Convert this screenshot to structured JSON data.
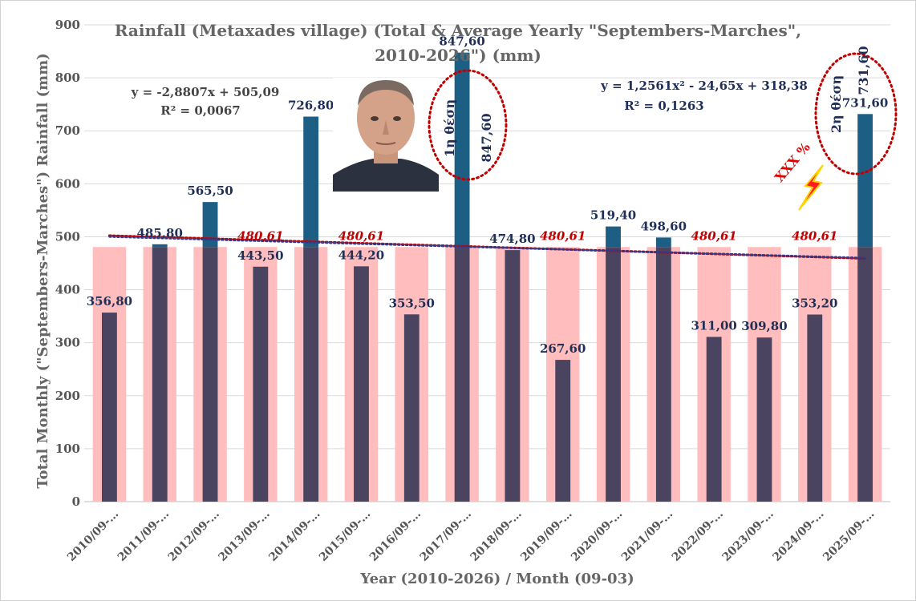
{
  "chart_data": {
    "type": "bar",
    "title_line1": "Rainfall (Metaxades village) (Total & Average Yearly \"Septembers-Marches\",",
    "title_line2": "2010-2026\") (mm)",
    "xlabel": "Year (2010-2026) / Month (09-03)",
    "ylabel": "Total Monthly (\"Septembers-Marches\") Rainfall (mm)",
    "ylim": [
      0,
      900
    ],
    "yticks": [
      0,
      100,
      200,
      300,
      400,
      500,
      600,
      700,
      800,
      900
    ],
    "categories": [
      "2010/09-…",
      "2011/09-…",
      "2012/09-…",
      "2013/09-…",
      "2014/09-…",
      "2015/09-…",
      "2016/09-…",
      "2017/09-…",
      "2018/09-…",
      "2019/09-…",
      "2020/09-…",
      "2021/09-…",
      "2022/09-…",
      "2023/09-…",
      "2024/09-…",
      "2025/09-…"
    ],
    "series": [
      {
        "name": "Average",
        "color": "#ffbdbd",
        "values": [
          480.61,
          480.61,
          480.61,
          480.61,
          480.61,
          480.61,
          480.61,
          480.61,
          480.61,
          480.61,
          480.61,
          480.61,
          480.61,
          480.61,
          480.61,
          480.61
        ],
        "shown_labels": {
          "3": "480,61",
          "5": "480,61",
          "9": "480,61",
          "12": "480,61",
          "14": "480,61"
        }
      },
      {
        "name": "Total",
        "colors": {
          "dark": "#4a4460",
          "blue": "#1d5e85"
        },
        "values": [
          356.8,
          485.8,
          565.5,
          443.5,
          726.8,
          444.2,
          353.5,
          847.6,
          474.8,
          267.6,
          519.4,
          498.6,
          311.0,
          309.8,
          353.2,
          731.6
        ],
        "labels": [
          "356,80",
          "485,80",
          "565,50",
          "443,50",
          "726,80",
          "444,20",
          "353,50",
          "847,60",
          "474,80",
          "267,60",
          "519,40",
          "498,60",
          "311,00",
          "309,80",
          "353,20",
          "731,60"
        ]
      }
    ],
    "trendlines": [
      {
        "type": "linear",
        "equation": "y = -2,8807x + 505,09",
        "r2": "R² = 0,0067",
        "color": "#c00000",
        "style": "dotted"
      },
      {
        "type": "polynomial",
        "equation": "y = 1,2561x² - 24,65x + 318,38",
        "r2": "R² = 0,1263",
        "color": "#2f3a8f",
        "style": "dotted"
      }
    ],
    "annotations": {
      "rank1": {
        "text": "1η θέση",
        "value_label": "847,60"
      },
      "rank2": {
        "text": "2η θέση",
        "value_label": "731,60"
      },
      "xxx": "XXX %"
    },
    "grid": true,
    "legend": "none"
  }
}
